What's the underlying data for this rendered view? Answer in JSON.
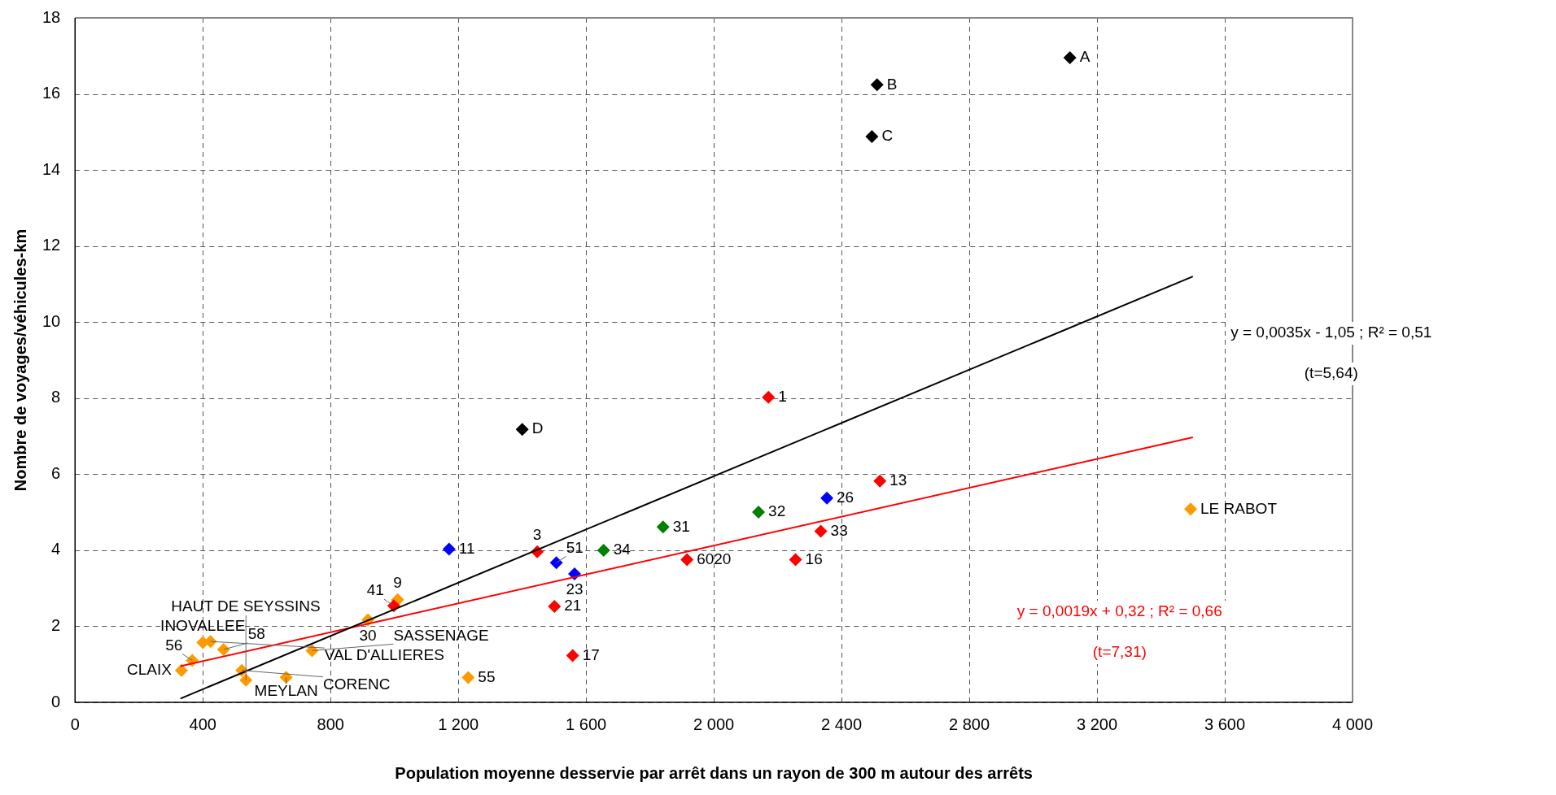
{
  "chart_data": {
    "type": "scatter",
    "xlabel": "Population moyenne desservie par arrêt dans un rayon de 300 m autour des arrêts",
    "ylabel": "Nombre de voyages/véhicules-km",
    "xlim": [
      0,
      4000
    ],
    "xticks": [
      0,
      400,
      800,
      {
        "value": 1200,
        "label": "1 200"
      },
      {
        "value": 1600,
        "label": "1 600"
      },
      {
        "value": 2000,
        "label": "2 000"
      },
      {
        "value": 2400,
        "label": "2 400"
      },
      {
        "value": 2800,
        "label": "2 800"
      },
      {
        "value": 3200,
        "label": "3 200"
      },
      {
        "value": 3600,
        "label": "3 600"
      },
      {
        "value": 4000,
        "label": "4 000"
      }
    ],
    "ylim": [
      0,
      18
    ],
    "yticks": [
      0,
      2,
      4,
      6,
      8,
      10,
      12,
      14,
      16,
      18
    ],
    "grid": true,
    "legend": false,
    "marker": "diamond",
    "series": [
      {
        "color": "#000000",
        "x": [
          3115,
          2511,
          2495,
          1400
        ],
        "values": [
          16.95,
          16.24,
          14.88,
          7.18
        ]
      },
      {
        "color": "#ff0000",
        "x": [
          2171,
          2520,
          2335,
          1447,
          1916,
          2256,
          1501,
          1558,
          998
        ],
        "values": [
          8.02,
          5.82,
          4.5,
          3.96,
          3.75,
          3.75,
          2.52,
          1.23,
          2.54
        ]
      },
      {
        "color": "#0000ff",
        "x": [
          2354,
          1171,
          1507,
          1564
        ],
        "values": [
          5.37,
          4.03,
          3.67,
          3.38
        ]
      },
      {
        "color": "#008000",
        "x": [
          2140,
          1841,
          1655
        ],
        "values": [
          5.0,
          4.61,
          4.0
        ]
      },
      {
        "color": "#ff9900",
        "x": [
          3493,
          1010,
          917,
          400,
          424,
          465,
          367,
          333,
          522,
          535,
          661,
          742,
          1231
        ],
        "values": [
          5.08,
          2.7,
          2.17,
          1.57,
          1.6,
          1.39,
          1.1,
          0.84,
          0.84,
          0.58,
          0.66,
          1.36,
          0.65
        ]
      },
      {
        "type": "line",
        "marker": "none",
        "name": "y = 0,0035x - 1,05 ; R² = 0,51",
        "color": "#000000",
        "x": [
          330,
          3500
        ],
        "values": [
          0.1,
          11.2
        ]
      },
      {
        "type": "line",
        "marker": "none",
        "name": "y = 0,0019x + 0,32 ; R² = 0,66",
        "color": "#ff0000",
        "x": [
          330,
          3500
        ],
        "values": [
          0.95,
          6.97
        ]
      }
    ],
    "annotations": [
      {
        "text": "A",
        "x": 3115,
        "y": 16.95
      },
      {
        "text": "B",
        "x": 2511,
        "y": 16.24
      },
      {
        "text": "C",
        "x": 2495,
        "y": 14.88
      },
      {
        "text": "D",
        "x": 1400,
        "y": 7.18
      },
      {
        "text": "1",
        "x": 2171,
        "y": 8.02
      },
      {
        "text": "13",
        "x": 2520,
        "y": 5.82
      },
      {
        "text": "33",
        "x": 2335,
        "y": 4.5
      },
      {
        "text": "3",
        "x": 1447,
        "y": 3.96
      },
      {
        "text": "6020",
        "x": 1916,
        "y": 3.75
      },
      {
        "text": "16",
        "x": 2256,
        "y": 3.75
      },
      {
        "text": "21",
        "x": 1501,
        "y": 2.52
      },
      {
        "text": "17",
        "x": 1558,
        "y": 1.23
      },
      {
        "text": "41",
        "x": 998,
        "y": 2.54
      },
      {
        "text": "26",
        "x": 2354,
        "y": 5.37
      },
      {
        "text": "11",
        "x": 1171,
        "y": 4.03
      },
      {
        "text": "51",
        "x": 1507,
        "y": 3.67
      },
      {
        "text": "23",
        "x": 1564,
        "y": 3.38
      },
      {
        "text": "32",
        "x": 2140,
        "y": 5.0
      },
      {
        "text": "31",
        "x": 1841,
        "y": 4.61
      },
      {
        "text": "34",
        "x": 1655,
        "y": 4.0
      },
      {
        "text": "LE RABOT",
        "x": 3493,
        "y": 5.08
      },
      {
        "text": "9",
        "x": 1010,
        "y": 2.7
      },
      {
        "text": "30",
        "x": 917,
        "y": 2.17
      },
      {
        "text": "INOVALLEE",
        "x": 400,
        "y": 1.57
      },
      {
        "text": "VAL D'ALLIERES",
        "x": 424,
        "y": 1.6
      },
      {
        "text": "58",
        "x": 465,
        "y": 1.39
      },
      {
        "text": "56",
        "x": 367,
        "y": 1.1
      },
      {
        "text": "CLAIX",
        "x": 333,
        "y": 0.84
      },
      {
        "text": "CORENC",
        "x": 522,
        "y": 0.84
      },
      {
        "text": "HAUT DE SEYSSINS",
        "x": 535,
        "y": 0.58
      },
      {
        "text": "MEYLAN",
        "x": 661,
        "y": 0.66
      },
      {
        "text": "SASSENAGE",
        "x": 742,
        "y": 1.36
      },
      {
        "text": "55",
        "x": 1231,
        "y": 0.65
      },
      "(t=5,64)",
      "(t=7,31)"
    ]
  }
}
